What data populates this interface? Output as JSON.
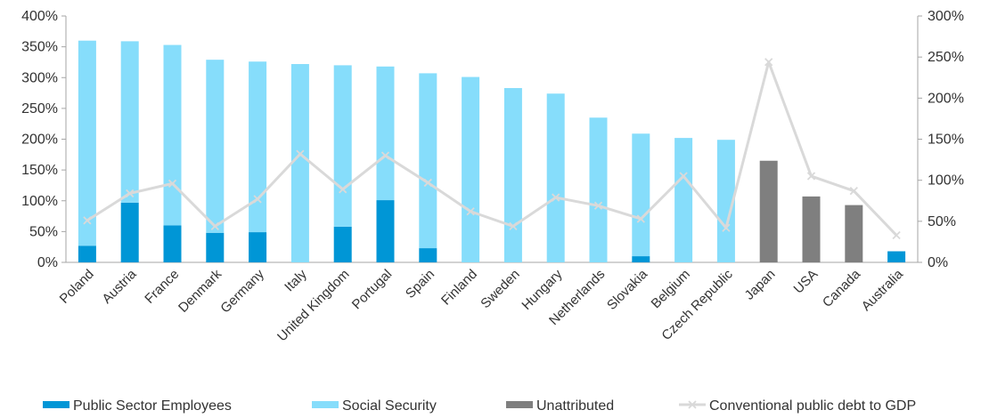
{
  "chart_data": {
    "type": "bar",
    "stacked": true,
    "categories": [
      "Poland",
      "Austria",
      "France",
      "Denmark",
      "Germany",
      "Italy",
      "United Kingdom",
      "Portugal",
      "Spain",
      "Finland",
      "Sweden",
      "Hungary",
      "Netherlands",
      "Slovakia",
      "Belgium",
      "Czech Republic",
      "Japan",
      "USA",
      "Canada",
      "Australia"
    ],
    "series": [
      {
        "name": "Public Sector Employees",
        "type": "bar",
        "axis": "left",
        "color": "#0096D6",
        "values": [
          27,
          97,
          60,
          48,
          49,
          0,
          58,
          101,
          23,
          0,
          0,
          0,
          0,
          10,
          0,
          0,
          0,
          0,
          0,
          18
        ]
      },
      {
        "name": "Social Security",
        "type": "bar",
        "axis": "left",
        "color": "#86DDFB",
        "values": [
          333,
          262,
          293,
          281,
          277,
          322,
          262,
          217,
          284,
          301,
          283,
          274,
          235,
          199,
          202,
          199,
          0,
          0,
          0,
          0
        ]
      },
      {
        "name": "Unattributed",
        "type": "bar",
        "axis": "left",
        "color": "#7F7F7F",
        "values": [
          0,
          0,
          0,
          0,
          0,
          0,
          0,
          0,
          0,
          0,
          0,
          0,
          0,
          0,
          0,
          0,
          165,
          107,
          93,
          0
        ]
      },
      {
        "name": "Conventional public debt to GDP",
        "type": "line",
        "axis": "right",
        "color": "#D9D9D9",
        "values": [
          51,
          84,
          96,
          44,
          77,
          132,
          89,
          130,
          97,
          62,
          44,
          79,
          69,
          53,
          105,
          42,
          244,
          105,
          87,
          33
        ]
      }
    ],
    "y_left": {
      "min": 0,
      "max": 400,
      "step": 50,
      "tick_labels": [
        "0%",
        "50%",
        "100%",
        "150%",
        "200%",
        "250%",
        "300%",
        "350%",
        "400%"
      ]
    },
    "y_right": {
      "min": 0,
      "max": 300,
      "step": 50,
      "tick_labels": [
        "0%",
        "50%",
        "100%",
        "150%",
        "200%",
        "250%",
        "300%"
      ]
    },
    "legend": {
      "placement": "bottom",
      "items": [
        "Public Sector Employees",
        "Social Security",
        "Unattributed",
        "Conventional public debt to GDP"
      ]
    },
    "grid": false
  }
}
